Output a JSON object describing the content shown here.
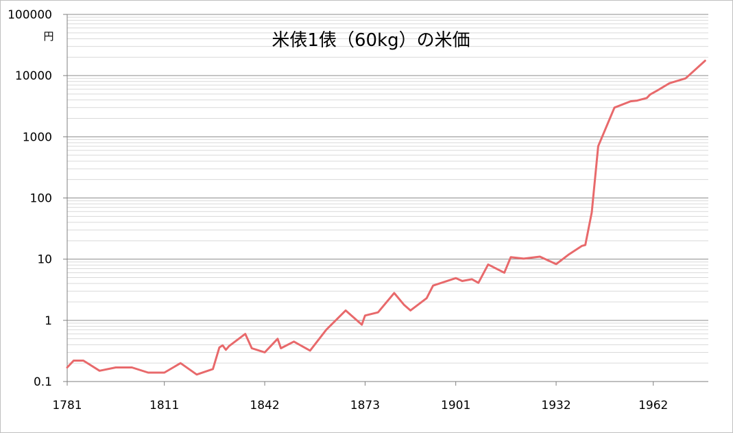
{
  "chart_data": {
    "type": "line",
    "title": "米俵1俵（60kg）の米価",
    "ylabel": "円",
    "xlabel": "",
    "yscale": "log",
    "ylim": [
      0.1,
      100000
    ],
    "xlim": [
      1781,
      1979
    ],
    "grid": {
      "major": true,
      "minor": true
    },
    "legend": "none",
    "line_color": "#e8696b",
    "y_ticks": [
      {
        "value": 0.1,
        "label": "0.1"
      },
      {
        "value": 1,
        "label": "1"
      },
      {
        "value": 10,
        "label": "10"
      },
      {
        "value": 100,
        "label": "100"
      },
      {
        "value": 1000,
        "label": "1000"
      },
      {
        "value": 10000,
        "label": "10000"
      },
      {
        "value": 100000,
        "label": "100000"
      }
    ],
    "x_ticks": [
      {
        "value": 1781,
        "label": "1781"
      },
      {
        "value": 1811,
        "label": "1811"
      },
      {
        "value": 1842,
        "label": "1842"
      },
      {
        "value": 1873,
        "label": "1873"
      },
      {
        "value": 1901,
        "label": "1901"
      },
      {
        "value": 1932,
        "label": "1932"
      },
      {
        "value": 1962,
        "label": "1962"
      }
    ],
    "series": [
      {
        "x": [
          1781,
          1783,
          1786,
          1791,
          1796,
          1801,
          1806,
          1811,
          1816,
          1821,
          1826,
          1828,
          1829,
          1830,
          1831,
          1836,
          1838,
          1842,
          1846,
          1847,
          1851,
          1856,
          1861,
          1867,
          1872,
          1873,
          1877,
          1882,
          1885,
          1887,
          1892,
          1894,
          1901,
          1903,
          1906,
          1908,
          1911,
          1916,
          1918,
          1922,
          1927,
          1932,
          1936,
          1940,
          1941,
          1943,
          1945,
          1950,
          1955,
          1957,
          1960,
          1961,
          1963,
          1967,
          1972,
          1978
        ],
        "y": [
          0.17,
          0.22,
          0.22,
          0.15,
          0.17,
          0.17,
          0.14,
          0.14,
          0.2,
          0.13,
          0.16,
          0.36,
          0.39,
          0.33,
          0.38,
          0.6,
          0.35,
          0.3,
          0.5,
          0.35,
          0.45,
          0.32,
          0.7,
          1.45,
          0.85,
          1.2,
          1.35,
          2.8,
          1.8,
          1.45,
          2.3,
          3.7,
          4.9,
          4.4,
          4.7,
          4.1,
          8.2,
          6.0,
          10.8,
          10.2,
          11.0,
          8.3,
          12.0,
          16.5,
          17.0,
          58,
          700,
          3000,
          3800,
          3900,
          4300,
          4900,
          5600,
          7500,
          9000,
          17500
        ]
      }
    ]
  }
}
